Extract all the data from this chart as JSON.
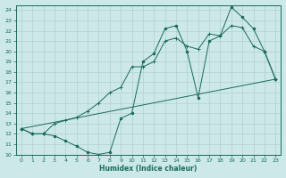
{
  "xlabel": "Humidex (Indice chaleur)",
  "xlim": [
    -0.5,
    23.5
  ],
  "ylim": [
    10,
    24.5
  ],
  "yticks": [
    10,
    11,
    12,
    13,
    14,
    15,
    16,
    17,
    18,
    19,
    20,
    21,
    22,
    23,
    24
  ],
  "xticks": [
    0,
    1,
    2,
    3,
    4,
    5,
    6,
    7,
    8,
    9,
    10,
    11,
    12,
    13,
    14,
    15,
    16,
    17,
    18,
    19,
    20,
    21,
    22,
    23
  ],
  "bg_color": "#cce8e8",
  "grid_color": "#b0d0d0",
  "line_color": "#1a6b5a",
  "line1_x": [
    0,
    1,
    2,
    3,
    4,
    5,
    6,
    7,
    8,
    9,
    10,
    11,
    12,
    13,
    14,
    15,
    16,
    17,
    18,
    19,
    20,
    21,
    22,
    23
  ],
  "line1_y": [
    12.5,
    12.0,
    12.0,
    11.8,
    11.3,
    10.8,
    10.2,
    10.0,
    10.2,
    13.5,
    14.0,
    19.0,
    19.8,
    22.2,
    22.5,
    20.0,
    15.5,
    21.0,
    21.5,
    24.3,
    23.3,
    22.2,
    20.0,
    17.3
  ],
  "line2_x": [
    0,
    1,
    2,
    3,
    4,
    5,
    6,
    7,
    8,
    9,
    10,
    11,
    12,
    13,
    14,
    15,
    16,
    17,
    18,
    19,
    20,
    21,
    22,
    23
  ],
  "line2_y": [
    12.5,
    12.0,
    12.0,
    13.0,
    13.3,
    13.6,
    14.2,
    15.0,
    16.0,
    16.5,
    18.5,
    18.5,
    19.0,
    21.0,
    21.3,
    20.5,
    20.2,
    21.7,
    21.5,
    22.5,
    22.3,
    20.5,
    20.0,
    17.3
  ],
  "line3_x": [
    0,
    23
  ],
  "line3_y": [
    12.5,
    17.3
  ]
}
